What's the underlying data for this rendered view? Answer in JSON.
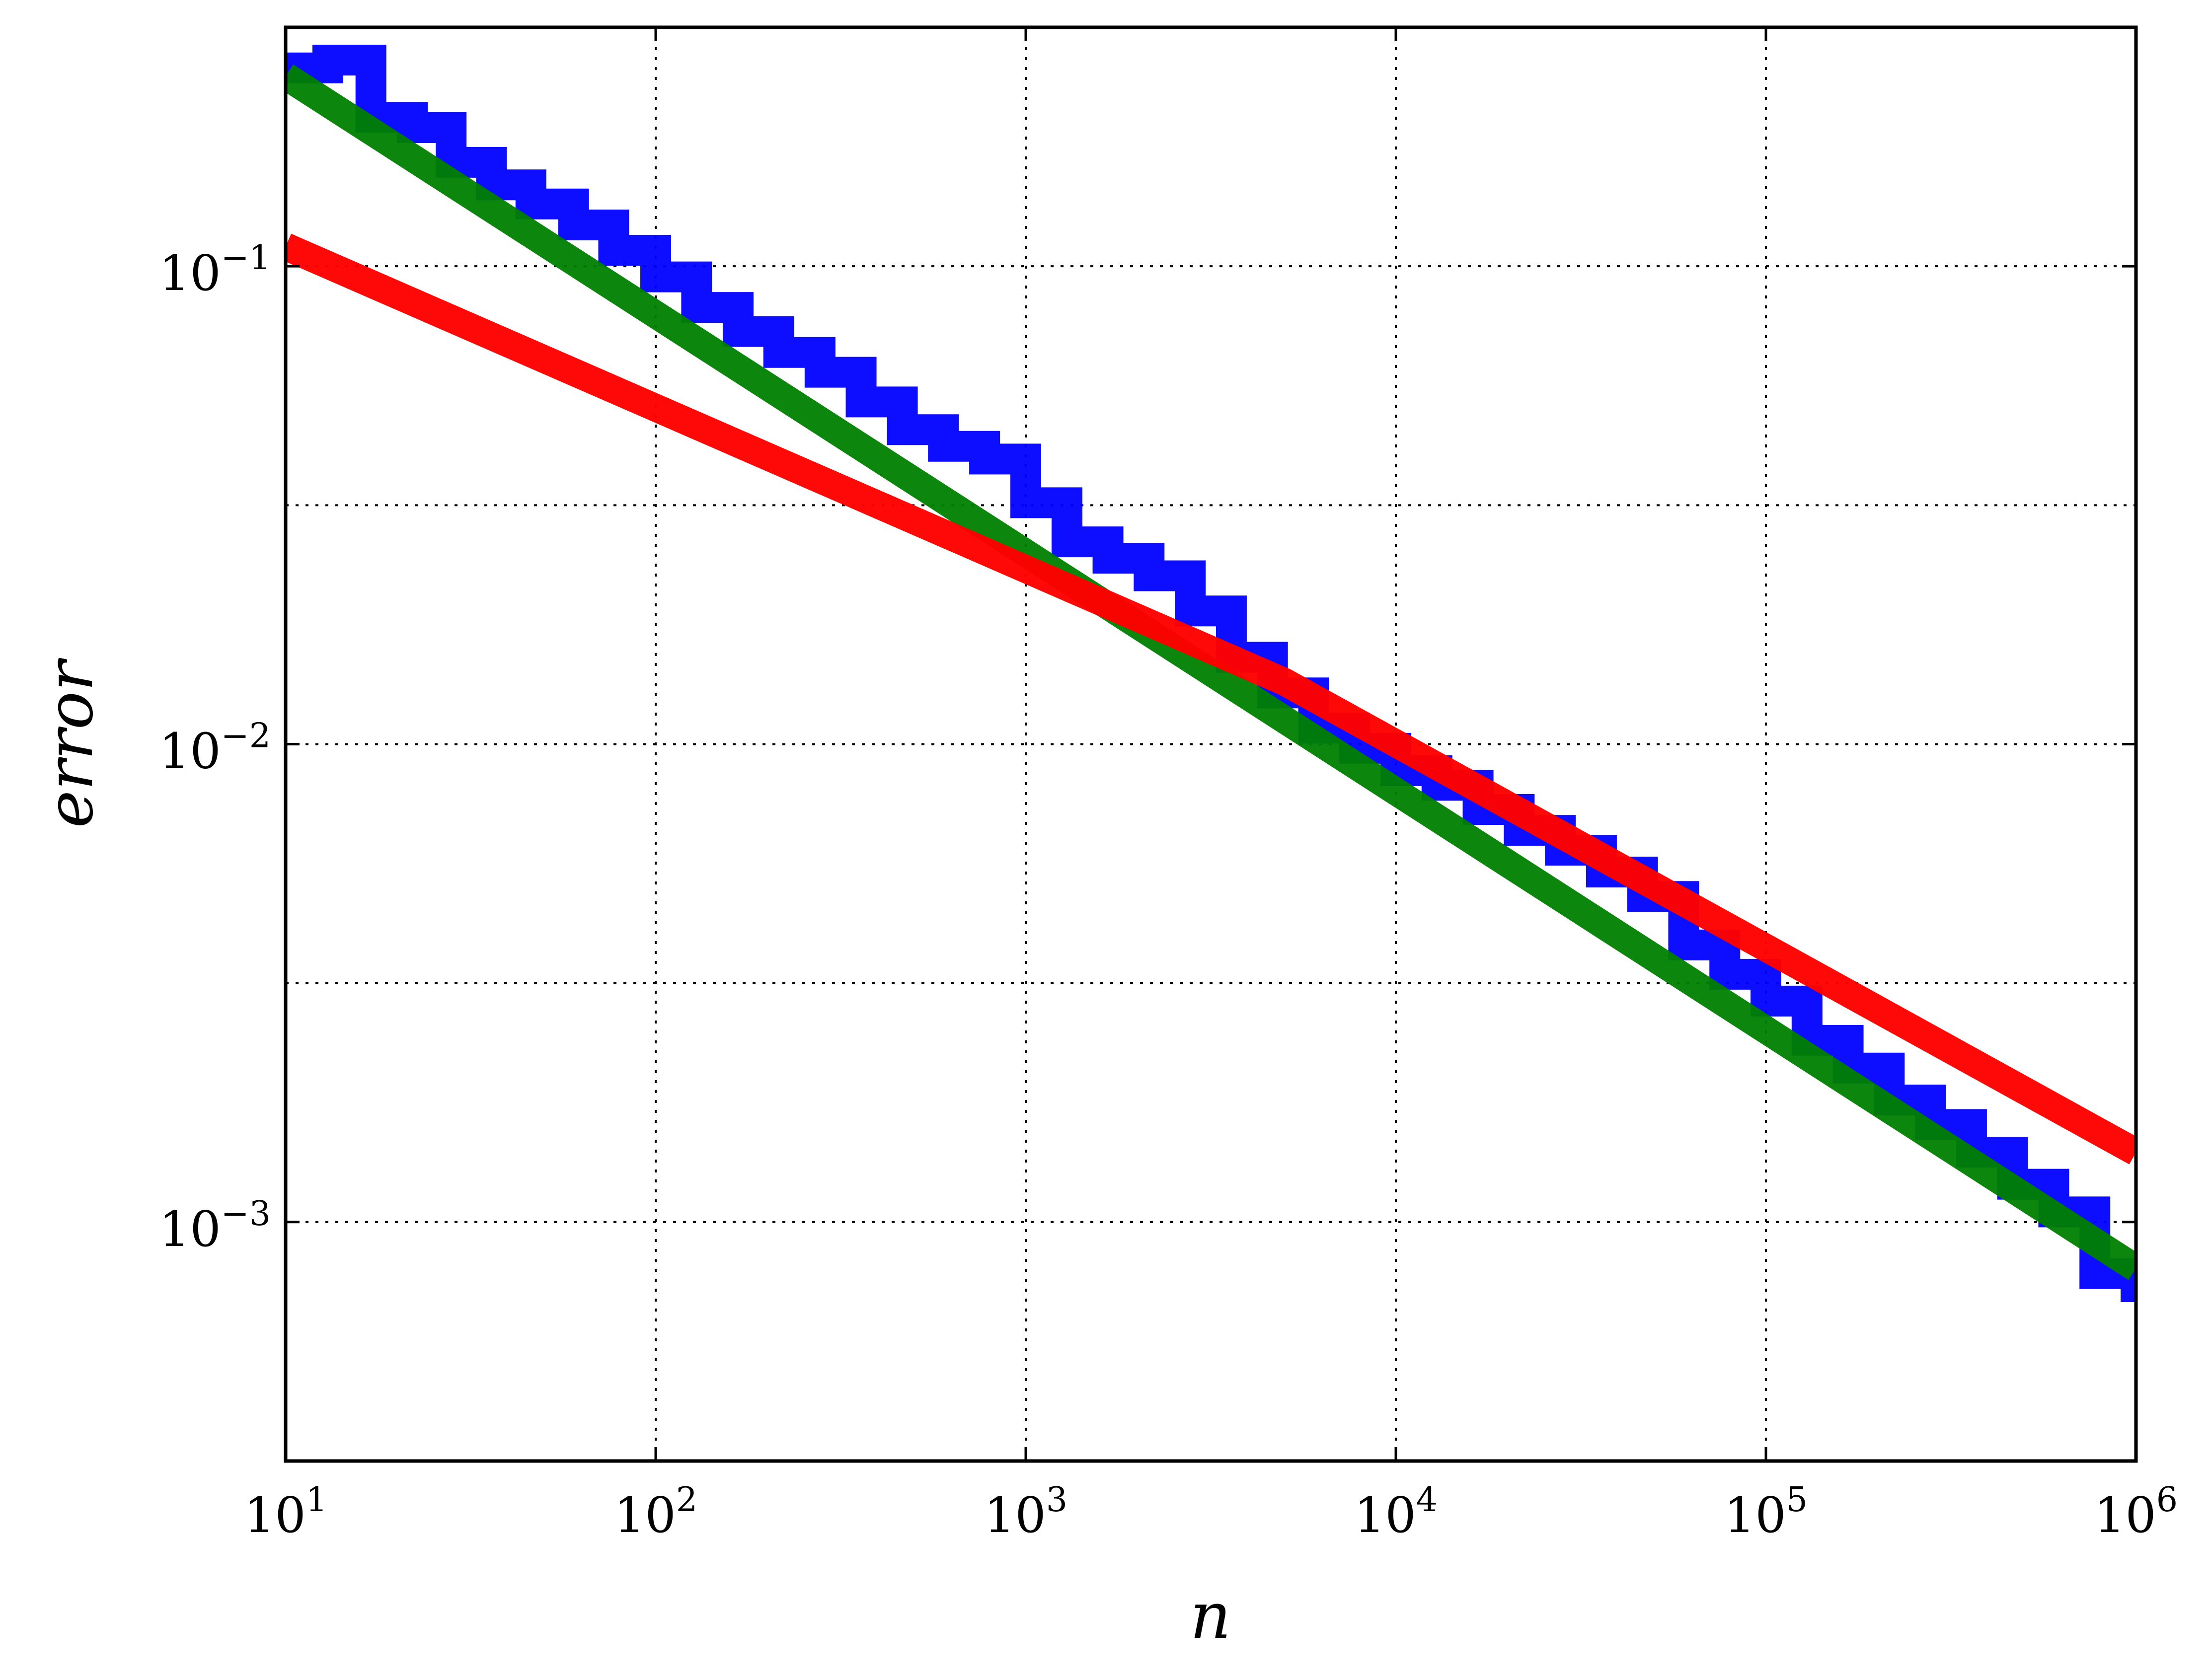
{
  "chart_data": {
    "type": "line",
    "xlabel": "n",
    "ylabel": "error",
    "x_scale": "log",
    "y_scale": "log",
    "xlim": [
      10,
      1000000
    ],
    "ylim": [
      0.0003162,
      0.3162
    ],
    "grid": true,
    "x_ticks": [
      {
        "base": "10",
        "exp": "1",
        "value": 10
      },
      {
        "base": "10",
        "exp": "2",
        "value": 100
      },
      {
        "base": "10",
        "exp": "3",
        "value": 1000
      },
      {
        "base": "10",
        "exp": "4",
        "value": 10000
      },
      {
        "base": "10",
        "exp": "5",
        "value": 100000
      },
      {
        "base": "10",
        "exp": "6",
        "value": 1000000
      }
    ],
    "y_ticks": [
      {
        "base": "10",
        "exp": "−1",
        "value": 0.1
      },
      {
        "base": "10",
        "exp": "−2",
        "value": 0.01
      },
      {
        "base": "10",
        "exp": "−3",
        "value": 0.001
      }
    ],
    "y_minor_grid": [
      0.03162,
      0.003162
    ],
    "series": [
      {
        "color": "#0000ff",
        "style": "step",
        "x": [
          10,
          13,
          17,
          22,
          28,
          36,
          46,
          60,
          77,
          100,
          129,
          167,
          215,
          278,
          359,
          464,
          599,
          774,
          1000,
          1292,
          1668,
          2154,
          2783,
          3594,
          4642,
          5995,
          7743,
          10000,
          12915,
          16681,
          21544,
          27826,
          35938,
          46416,
          59948,
          77426,
          100000,
          129155,
          166810,
          215443,
          278256,
          359381,
          464159,
          599484,
          774264,
          1000000
        ],
        "y": [
          0.26,
          0.27,
          0.205,
          0.195,
          0.165,
          0.148,
          0.135,
          0.122,
          0.108,
          0.095,
          0.082,
          0.073,
          0.066,
          0.06,
          0.052,
          0.0455,
          0.042,
          0.0395,
          0.032,
          0.0265,
          0.0245,
          0.0225,
          0.019,
          0.0152,
          0.0128,
          0.0108,
          0.0098,
          0.0088,
          0.0082,
          0.0073,
          0.0066,
          0.006,
          0.0054,
          0.0048,
          0.0038,
          0.0033,
          0.0029,
          0.0024,
          0.0021,
          0.0018,
          0.0016,
          0.0014,
          0.0012,
          0.00105,
          0.00078,
          0.00068
        ]
      },
      {
        "color": "#008000",
        "style": "line",
        "x": [
          10,
          1000000
        ],
        "y": [
          0.25,
          0.0008
        ]
      },
      {
        "color": "#ff0000",
        "style": "line",
        "x": [
          10,
          5000,
          1000000
        ],
        "y": [
          0.11,
          0.0135,
          0.0014
        ]
      }
    ]
  }
}
